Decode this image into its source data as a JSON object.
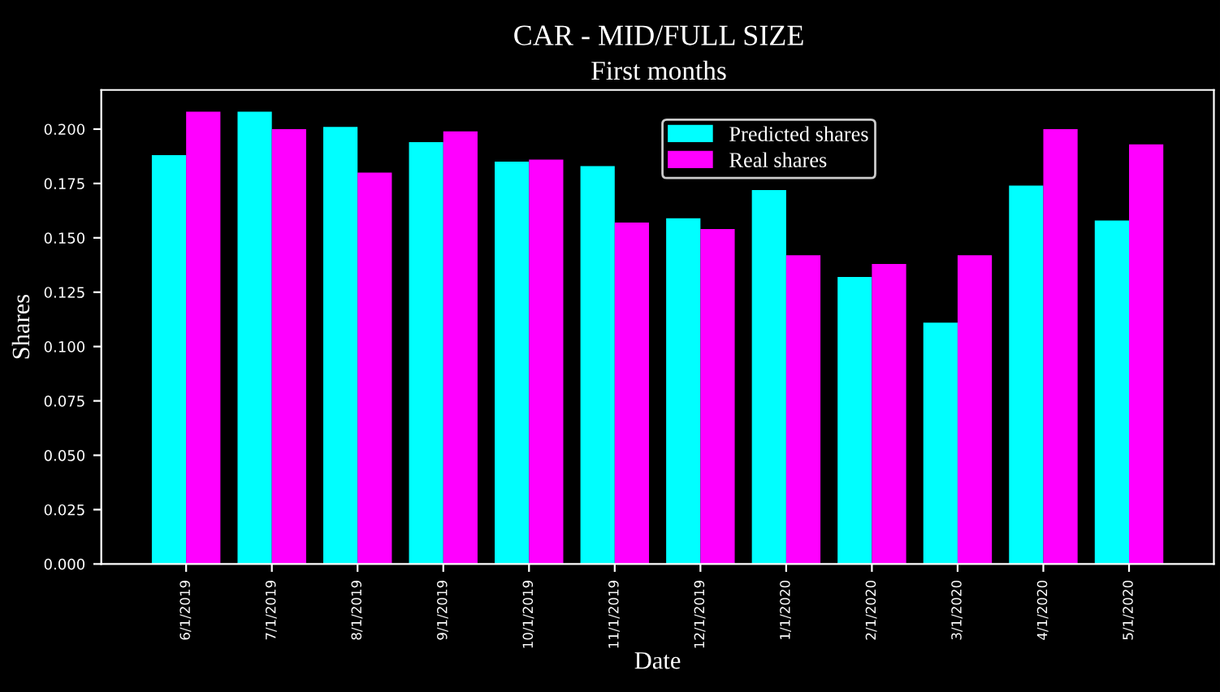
{
  "chart_data": {
    "type": "bar",
    "title": "CAR - MID/FULL SIZE",
    "subtitle": "First months",
    "xlabel": "Date",
    "ylabel": "Shares",
    "categories": [
      "6/1/2019",
      "7/1/2019",
      "8/1/2019",
      "9/1/2019",
      "10/1/2019",
      "11/1/2019",
      "12/1/2019",
      "1/1/2020",
      "2/1/2020",
      "3/1/2020",
      "4/1/2020",
      "5/1/2020"
    ],
    "series": [
      {
        "name": "Predicted shares",
        "color": "#00ffff",
        "values": [
          0.188,
          0.208,
          0.201,
          0.194,
          0.185,
          0.183,
          0.159,
          0.172,
          0.132,
          0.111,
          0.174,
          0.158
        ]
      },
      {
        "name": "Real shares",
        "color": "#ff00ff",
        "values": [
          0.208,
          0.2,
          0.18,
          0.199,
          0.186,
          0.157,
          0.154,
          0.142,
          0.138,
          0.142,
          0.2,
          0.193
        ]
      }
    ],
    "ylim": [
      0,
      0.218
    ],
    "yticks": [
      {
        "value": 0,
        "label": "0.000"
      },
      {
        "value": 0.025,
        "label": "0.025"
      },
      {
        "value": 0.05,
        "label": "0.050"
      },
      {
        "value": 0.075,
        "label": "0.075"
      },
      {
        "value": 0.1,
        "label": "0.100"
      },
      {
        "value": 0.125,
        "label": "0.125"
      },
      {
        "value": 0.15,
        "label": "0.150"
      },
      {
        "value": 0.175,
        "label": "0.175"
      },
      {
        "value": 0.2,
        "label": "0.200"
      }
    ],
    "legend": "top",
    "grid": false
  }
}
